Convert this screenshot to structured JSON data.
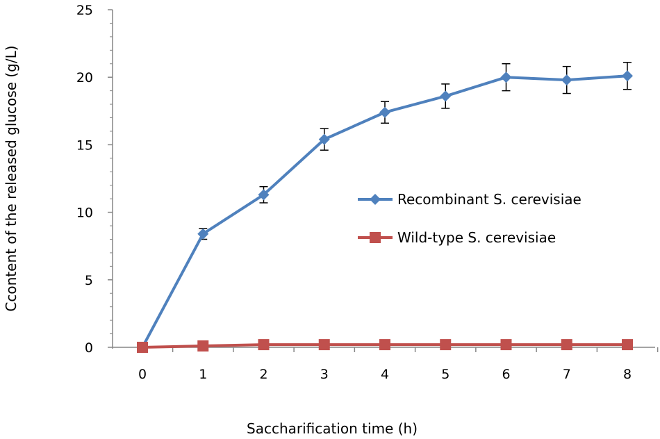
{
  "chart_data": {
    "type": "line",
    "title": "",
    "xlabel": "Saccharification time (h)",
    "ylabel": "Ccontent of the released glucose (g/L)",
    "x": [
      0,
      1,
      2,
      3,
      4,
      5,
      6,
      7,
      8
    ],
    "xlim": [
      0,
      8
    ],
    "ylim": [
      0,
      25
    ],
    "x_ticks": [
      "0",
      "1",
      "2",
      "3",
      "4",
      "5",
      "6",
      "7",
      "8"
    ],
    "y_ticks": [
      "0",
      "5",
      "10",
      "15",
      "20",
      "25"
    ],
    "grid": false,
    "legend_position": "right",
    "series": [
      {
        "name": "Recombinant S. cerevisiae",
        "color": "#4f81bd",
        "marker": "diamond",
        "values": [
          0.0,
          8.4,
          11.3,
          15.4,
          17.4,
          18.6,
          20.0,
          19.8,
          20.1
        ],
        "errors": [
          0.0,
          0.4,
          0.6,
          0.8,
          0.8,
          0.9,
          1.0,
          1.0,
          1.0
        ]
      },
      {
        "name": "Wild-type S. cerevisiae",
        "color": "#c0504d",
        "marker": "square",
        "values": [
          0.0,
          0.1,
          0.2,
          0.2,
          0.2,
          0.2,
          0.2,
          0.2,
          0.2
        ],
        "errors": []
      }
    ]
  }
}
